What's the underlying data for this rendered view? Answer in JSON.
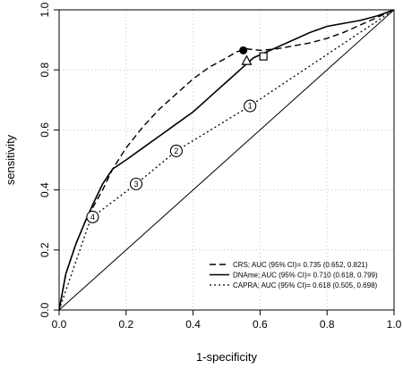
{
  "chart_data": {
    "type": "line",
    "xlabel": "1-specificity",
    "ylabel": "sensitivity",
    "xlim": [
      0,
      1
    ],
    "ylim": [
      0,
      1
    ],
    "xticks": [
      "0.0",
      "0.2",
      "0.4",
      "0.6",
      "0.8",
      "1.0"
    ],
    "yticks": [
      "0.0",
      "0.2",
      "0.4",
      "0.6",
      "0.8",
      "1.0"
    ],
    "grid": true,
    "legend_position": "bottom-right",
    "series": [
      {
        "name": "CRS; AUC (95% CI)= 0.735 (0.652, 0.821)",
        "style": "dashed",
        "points": [
          [
            0,
            0
          ],
          [
            0.02,
            0.12
          ],
          [
            0.05,
            0.22
          ],
          [
            0.08,
            0.3
          ],
          [
            0.1,
            0.34
          ],
          [
            0.13,
            0.4
          ],
          [
            0.16,
            0.47
          ],
          [
            0.2,
            0.54
          ],
          [
            0.25,
            0.61
          ],
          [
            0.3,
            0.67
          ],
          [
            0.35,
            0.72
          ],
          [
            0.4,
            0.77
          ],
          [
            0.45,
            0.81
          ],
          [
            0.5,
            0.84
          ],
          [
            0.53,
            0.86
          ],
          [
            0.56,
            0.87
          ],
          [
            0.6,
            0.865
          ],
          [
            0.65,
            0.87
          ],
          [
            0.7,
            0.88
          ],
          [
            0.75,
            0.89
          ],
          [
            0.8,
            0.905
          ],
          [
            0.85,
            0.925
          ],
          [
            0.9,
            0.95
          ],
          [
            0.95,
            0.975
          ],
          [
            1,
            1
          ]
        ]
      },
      {
        "name": "DNAme; AUC (95% CI)= 0.710 (0.618, 0.799)",
        "style": "solid",
        "points": [
          [
            0,
            0
          ],
          [
            0.02,
            0.12
          ],
          [
            0.05,
            0.22
          ],
          [
            0.08,
            0.3
          ],
          [
            0.1,
            0.35
          ],
          [
            0.13,
            0.42
          ],
          [
            0.16,
            0.47
          ],
          [
            0.2,
            0.5
          ],
          [
            0.25,
            0.54
          ],
          [
            0.3,
            0.58
          ],
          [
            0.35,
            0.62
          ],
          [
            0.4,
            0.66
          ],
          [
            0.45,
            0.71
          ],
          [
            0.5,
            0.76
          ],
          [
            0.55,
            0.81
          ],
          [
            0.58,
            0.84
          ],
          [
            0.62,
            0.86
          ],
          [
            0.66,
            0.88
          ],
          [
            0.7,
            0.9
          ],
          [
            0.75,
            0.925
          ],
          [
            0.8,
            0.945
          ],
          [
            0.85,
            0.955
          ],
          [
            0.9,
            0.965
          ],
          [
            0.95,
            0.98
          ],
          [
            1,
            1
          ]
        ]
      },
      {
        "name": "CAPRA; AUC (95% CI)= 0.618 (0.505, 0.698)",
        "style": "dotted",
        "points": [
          [
            0,
            0
          ],
          [
            0.09,
            0.29
          ],
          [
            0.1,
            0.31
          ],
          [
            0.23,
            0.42
          ],
          [
            0.35,
            0.53
          ],
          [
            0.57,
            0.68
          ],
          [
            1,
            1
          ]
        ]
      }
    ],
    "reference_line": [
      [
        0,
        0
      ],
      [
        1,
        1
      ]
    ],
    "markers": [
      {
        "shape": "circle-filled",
        "label": "",
        "x": 0.55,
        "y": 0.865
      },
      {
        "shape": "square",
        "label": "",
        "x": 0.61,
        "y": 0.845
      },
      {
        "shape": "triangle",
        "label": "",
        "x": 0.56,
        "y": 0.83
      },
      {
        "shape": "circle-numbered",
        "label": "1",
        "x": 0.57,
        "y": 0.68
      },
      {
        "shape": "circle-numbered",
        "label": "2",
        "x": 0.35,
        "y": 0.53
      },
      {
        "shape": "circle-numbered",
        "label": "3",
        "x": 0.23,
        "y": 0.42
      },
      {
        "shape": "circle-numbered",
        "label": "4",
        "x": 0.1,
        "y": 0.31
      }
    ]
  }
}
